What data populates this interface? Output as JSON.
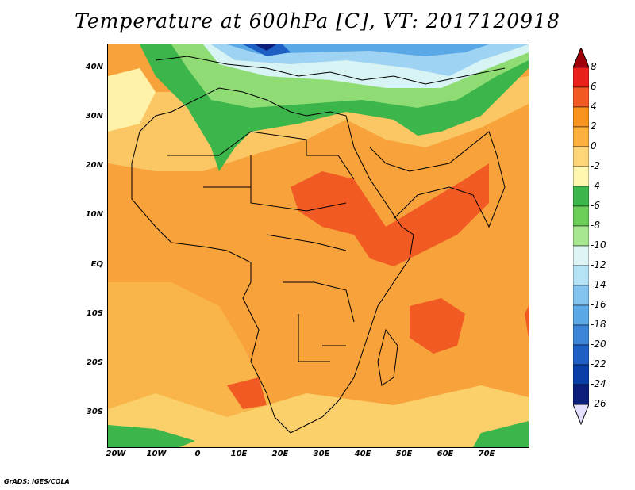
{
  "title": "Temperature at 600hPa [C], VT: 2017120918",
  "credit": "GrADS: IGES/COLA",
  "map": {
    "lat_labels": [
      "40N",
      "30N",
      "20N",
      "10N",
      "EQ",
      "10S",
      "20S",
      "30S"
    ],
    "lon_labels": [
      "20W",
      "10W",
      "0",
      "10E",
      "20E",
      "30E",
      "40E",
      "50E",
      "60E",
      "70E"
    ]
  },
  "colorbar": {
    "labels": [
      "8",
      "6",
      "4",
      "2",
      "0",
      "-2",
      "-4",
      "-6",
      "-8",
      "-10",
      "-12",
      "-14",
      "-16",
      "-18",
      "-20",
      "-22",
      "-24",
      "-26"
    ],
    "colors": [
      "#a0000a",
      "#e8221a",
      "#f15a22",
      "#f7931e",
      "#fbb040",
      "#fdd67a",
      "#fff7b0",
      "#3cb54a",
      "#6ccf5a",
      "#a6e78f",
      "#dff5f5",
      "#b3e3f5",
      "#83c5f0",
      "#5aa8e6",
      "#3b84d8",
      "#1e5fc4",
      "#0a3fa8",
      "#0b1f7a",
      "#e6e0ff"
    ]
  }
}
